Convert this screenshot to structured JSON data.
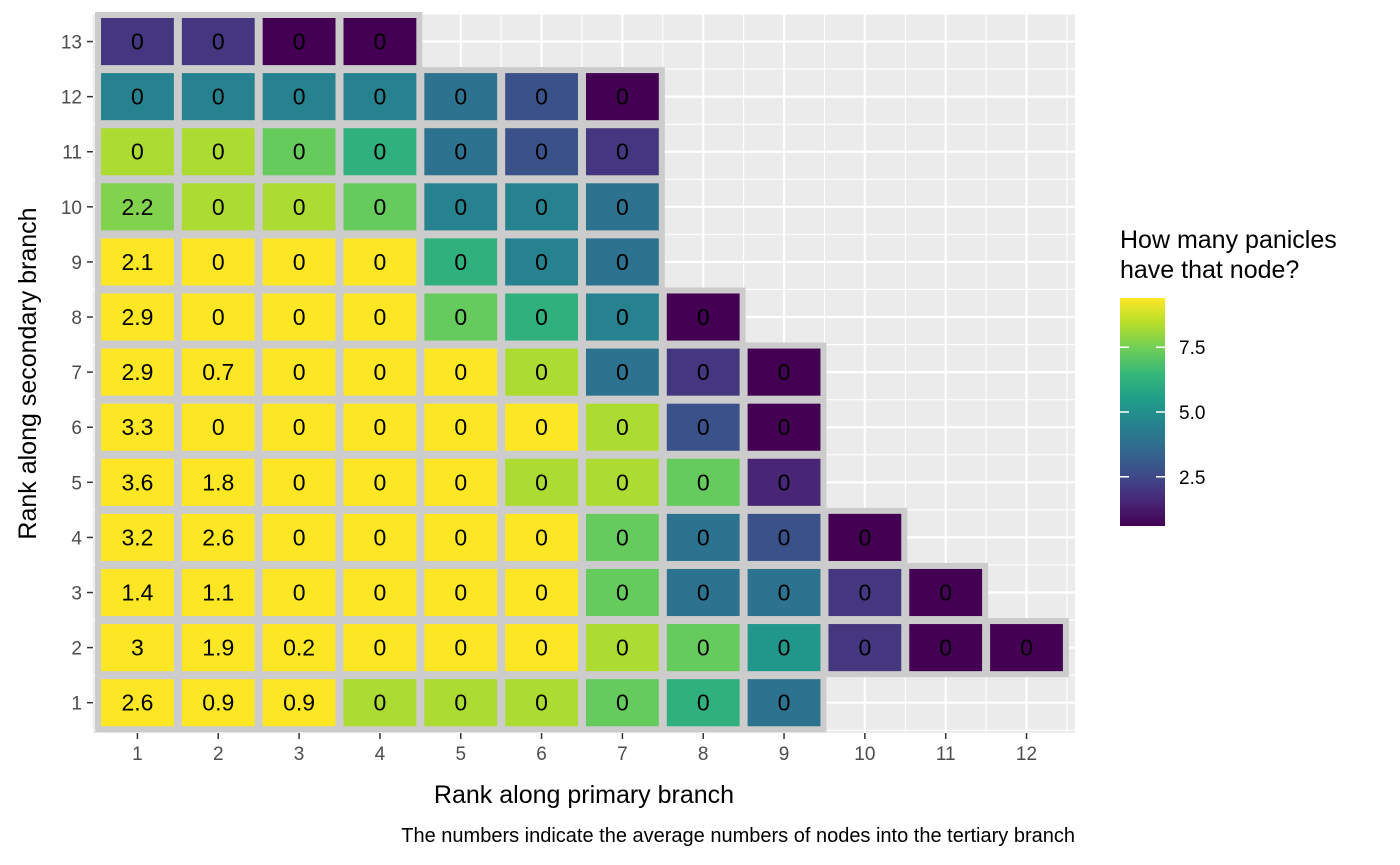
{
  "chart_data": {
    "type": "heatmap",
    "xlabel": "Rank along primary branch",
    "ylabel": "Rank along secondary branch",
    "caption": "The numbers indicate the average numbers of nodes into the tertiary branch",
    "x_ticks": [
      1,
      2,
      3,
      4,
      5,
      6,
      7,
      8,
      9,
      10,
      11,
      12
    ],
    "y_ticks": [
      1,
      2,
      3,
      4,
      5,
      6,
      7,
      8,
      9,
      10,
      11,
      12,
      13
    ],
    "x_range": [
      0.45,
      12.6
    ],
    "y_range": [
      0.45,
      13.5
    ],
    "grid": true,
    "legend": {
      "title_lines": [
        "How many panicles",
        "have that node?"
      ],
      "ticks": [
        2.5,
        5.0,
        7.5
      ],
      "tick_labels": [
        "2.5",
        "5.0",
        "7.5"
      ],
      "min": 0.6,
      "max": 9.4,
      "placement": "right",
      "colormap": "viridis"
    },
    "colors": {
      "panel_background": "#ebebeb",
      "grid_line": "#ffffff",
      "cell_outline": "#cccccc"
    },
    "columns": [
      {
        "x": 1,
        "values": [
          {
            "y": 1,
            "label": "2.6",
            "count": 9.4
          },
          {
            "y": 2,
            "label": "3",
            "count": 9.4
          },
          {
            "y": 3,
            "label": "1.4",
            "count": 9.4
          },
          {
            "y": 4,
            "label": "3.2",
            "count": 9.4
          },
          {
            "y": 5,
            "label": "3.6",
            "count": 9.4
          },
          {
            "y": 6,
            "label": "3.3",
            "count": 9.4
          },
          {
            "y": 7,
            "label": "2.9",
            "count": 9.4
          },
          {
            "y": 8,
            "label": "2.9",
            "count": 9.4
          },
          {
            "y": 9,
            "label": "2.1",
            "count": 9.4
          },
          {
            "y": 10,
            "label": "2.2",
            "count": 7.7
          },
          {
            "y": 11,
            "label": "0",
            "count": 8.3
          },
          {
            "y": 12,
            "label": "0",
            "count": 4.5
          },
          {
            "y": 13,
            "label": "0",
            "count": 2.0
          }
        ]
      },
      {
        "x": 2,
        "values": [
          {
            "y": 1,
            "label": "0.9",
            "count": 9.4
          },
          {
            "y": 2,
            "label": "1.9",
            "count": 9.4
          },
          {
            "y": 3,
            "label": "1.1",
            "count": 9.4
          },
          {
            "y": 4,
            "label": "2.6",
            "count": 9.4
          },
          {
            "y": 5,
            "label": "1.8",
            "count": 9.4
          },
          {
            "y": 6,
            "label": "0",
            "count": 9.4
          },
          {
            "y": 7,
            "label": "0.7",
            "count": 9.4
          },
          {
            "y": 8,
            "label": "0",
            "count": 9.4
          },
          {
            "y": 9,
            "label": "0",
            "count": 9.4
          },
          {
            "y": 10,
            "label": "0",
            "count": 8.3
          },
          {
            "y": 11,
            "label": "0",
            "count": 8.3
          },
          {
            "y": 12,
            "label": "0",
            "count": 4.5
          },
          {
            "y": 13,
            "label": "0",
            "count": 2.0
          }
        ]
      },
      {
        "x": 3,
        "values": [
          {
            "y": 1,
            "label": "0.9",
            "count": 9.4
          },
          {
            "y": 2,
            "label": "0.2",
            "count": 9.4
          },
          {
            "y": 3,
            "label": "0",
            "count": 9.4
          },
          {
            "y": 4,
            "label": "0",
            "count": 9.4
          },
          {
            "y": 5,
            "label": "0",
            "count": 9.4
          },
          {
            "y": 6,
            "label": "0",
            "count": 9.4
          },
          {
            "y": 7,
            "label": "0",
            "count": 9.4
          },
          {
            "y": 8,
            "label": "0",
            "count": 9.4
          },
          {
            "y": 9,
            "label": "0",
            "count": 9.4
          },
          {
            "y": 10,
            "label": "0",
            "count": 8.3
          },
          {
            "y": 11,
            "label": "0",
            "count": 7.3
          },
          {
            "y": 12,
            "label": "0",
            "count": 4.5
          },
          {
            "y": 13,
            "label": "0",
            "count": 0.6
          }
        ]
      },
      {
        "x": 4,
        "values": [
          {
            "y": 1,
            "label": "0",
            "count": 8.3
          },
          {
            "y": 2,
            "label": "0",
            "count": 9.4
          },
          {
            "y": 3,
            "label": "0",
            "count": 9.4
          },
          {
            "y": 4,
            "label": "0",
            "count": 9.4
          },
          {
            "y": 5,
            "label": "0",
            "count": 9.4
          },
          {
            "y": 6,
            "label": "0",
            "count": 9.4
          },
          {
            "y": 7,
            "label": "0",
            "count": 9.4
          },
          {
            "y": 8,
            "label": "0",
            "count": 9.4
          },
          {
            "y": 9,
            "label": "0",
            "count": 9.4
          },
          {
            "y": 10,
            "label": "0",
            "count": 7.3
          },
          {
            "y": 11,
            "label": "0",
            "count": 6.2
          },
          {
            "y": 12,
            "label": "0",
            "count": 4.5
          },
          {
            "y": 13,
            "label": "0",
            "count": 0.6
          }
        ]
      },
      {
        "x": 5,
        "values": [
          {
            "y": 1,
            "label": "0",
            "count": 8.3
          },
          {
            "y": 2,
            "label": "0",
            "count": 9.4
          },
          {
            "y": 3,
            "label": "0",
            "count": 9.4
          },
          {
            "y": 4,
            "label": "0",
            "count": 9.4
          },
          {
            "y": 5,
            "label": "0",
            "count": 9.4
          },
          {
            "y": 6,
            "label": "0",
            "count": 9.4
          },
          {
            "y": 7,
            "label": "0",
            "count": 9.4
          },
          {
            "y": 8,
            "label": "0",
            "count": 7.3
          },
          {
            "y": 9,
            "label": "0",
            "count": 6.2
          },
          {
            "y": 10,
            "label": "0",
            "count": 4.5
          },
          {
            "y": 11,
            "label": "0",
            "count": 3.9
          },
          {
            "y": 12,
            "label": "0",
            "count": 3.9
          }
        ]
      },
      {
        "x": 6,
        "values": [
          {
            "y": 1,
            "label": "0",
            "count": 8.3
          },
          {
            "y": 2,
            "label": "0",
            "count": 9.4
          },
          {
            "y": 3,
            "label": "0",
            "count": 9.4
          },
          {
            "y": 4,
            "label": "0",
            "count": 9.4
          },
          {
            "y": 5,
            "label": "0",
            "count": 8.3
          },
          {
            "y": 6,
            "label": "0",
            "count": 9.4
          },
          {
            "y": 7,
            "label": "0",
            "count": 8.3
          },
          {
            "y": 8,
            "label": "0",
            "count": 6.2
          },
          {
            "y": 9,
            "label": "0",
            "count": 4.5
          },
          {
            "y": 10,
            "label": "0",
            "count": 4.5
          },
          {
            "y": 11,
            "label": "0",
            "count": 2.8
          },
          {
            "y": 12,
            "label": "0",
            "count": 2.8
          }
        ]
      },
      {
        "x": 7,
        "values": [
          {
            "y": 1,
            "label": "0",
            "count": 7.3
          },
          {
            "y": 2,
            "label": "0",
            "count": 8.3
          },
          {
            "y": 3,
            "label": "0",
            "count": 7.3
          },
          {
            "y": 4,
            "label": "0",
            "count": 7.3
          },
          {
            "y": 5,
            "label": "0",
            "count": 8.3
          },
          {
            "y": 6,
            "label": "0",
            "count": 8.3
          },
          {
            "y": 7,
            "label": "0",
            "count": 3.9
          },
          {
            "y": 8,
            "label": "0",
            "count": 4.5
          },
          {
            "y": 9,
            "label": "0",
            "count": 3.9
          },
          {
            "y": 10,
            "label": "0",
            "count": 3.9
          },
          {
            "y": 11,
            "label": "0",
            "count": 2.0
          },
          {
            "y": 12,
            "label": "0",
            "count": 0.6
          }
        ]
      },
      {
        "x": 8,
        "values": [
          {
            "y": 1,
            "label": "0",
            "count": 6.2
          },
          {
            "y": 2,
            "label": "0",
            "count": 7.3
          },
          {
            "y": 3,
            "label": "0",
            "count": 3.9
          },
          {
            "y": 4,
            "label": "0",
            "count": 3.9
          },
          {
            "y": 5,
            "label": "0",
            "count": 7.3
          },
          {
            "y": 6,
            "label": "0",
            "count": 2.8
          },
          {
            "y": 7,
            "label": "0",
            "count": 2.0
          },
          {
            "y": 8,
            "label": "0",
            "count": 0.6
          }
        ]
      },
      {
        "x": 9,
        "values": [
          {
            "y": 1,
            "label": "0",
            "count": 3.9
          },
          {
            "y": 2,
            "label": "0",
            "count": 5.2
          },
          {
            "y": 3,
            "label": "0",
            "count": 3.9
          },
          {
            "y": 4,
            "label": "0",
            "count": 2.8
          },
          {
            "y": 5,
            "label": "0",
            "count": 1.5
          },
          {
            "y": 6,
            "label": "0",
            "count": 0.6
          },
          {
            "y": 7,
            "label": "0",
            "count": 0.6
          }
        ]
      },
      {
        "x": 10,
        "values": [
          {
            "y": 2,
            "label": "0",
            "count": 2.0
          },
          {
            "y": 3,
            "label": "0",
            "count": 2.0
          },
          {
            "y": 4,
            "label": "0",
            "count": 0.6
          }
        ]
      },
      {
        "x": 11,
        "values": [
          {
            "y": 2,
            "label": "0",
            "count": 0.6
          },
          {
            "y": 3,
            "label": "0",
            "count": 0.6
          }
        ]
      },
      {
        "x": 12,
        "values": [
          {
            "y": 2,
            "label": "0",
            "count": 0.6
          }
        ]
      }
    ]
  }
}
